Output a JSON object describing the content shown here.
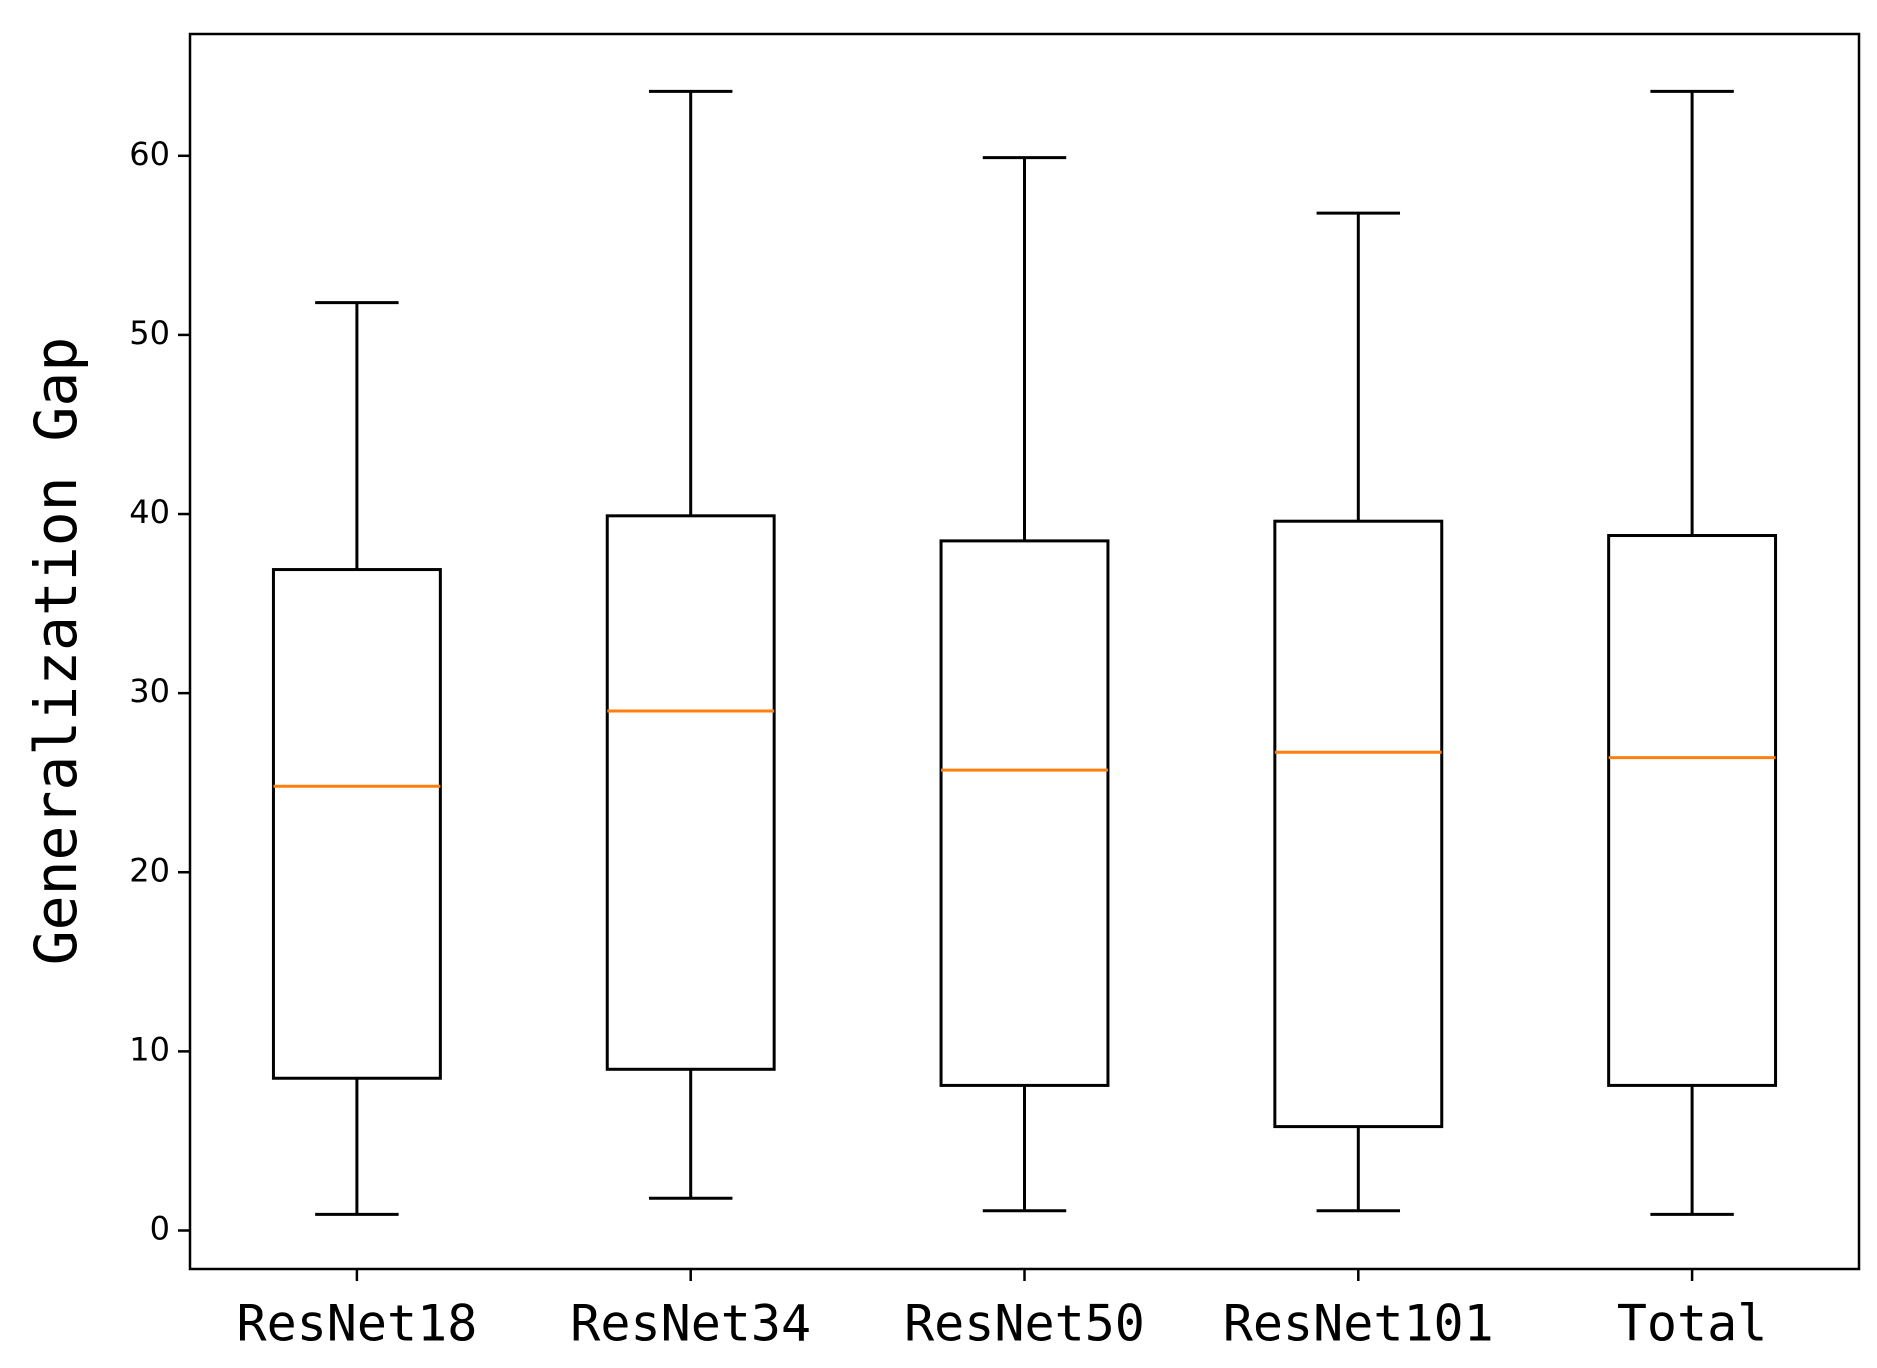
{
  "chart_data": {
    "type": "box",
    "y_label": "Generalization Gap",
    "categories": [
      "ResNet18",
      "ResNet34",
      "ResNet50",
      "ResNet101",
      "Total"
    ],
    "boxes": [
      {
        "whislo": 0.9,
        "q1": 8.5,
        "med": 24.8,
        "q3": 36.9,
        "whishi": 51.8
      },
      {
        "whislo": 1.8,
        "q1": 9.0,
        "med": 29.0,
        "q3": 39.9,
        "whishi": 63.6
      },
      {
        "whislo": 1.1,
        "q1": 8.1,
        "med": 25.7,
        "q3": 38.5,
        "whishi": 59.9
      },
      {
        "whislo": 1.1,
        "q1": 5.8,
        "med": 26.7,
        "q3": 39.6,
        "whishi": 56.8
      },
      {
        "whislo": 0.9,
        "q1": 8.1,
        "med": 26.4,
        "q3": 38.8,
        "whishi": 63.6
      }
    ],
    "box_color": "#000000",
    "median_color": "#ff7f0e",
    "ylim": [
      -2.15,
      66.8
    ],
    "yticks": [
      0,
      10,
      20,
      30,
      40,
      50,
      60
    ],
    "grid": false
  }
}
